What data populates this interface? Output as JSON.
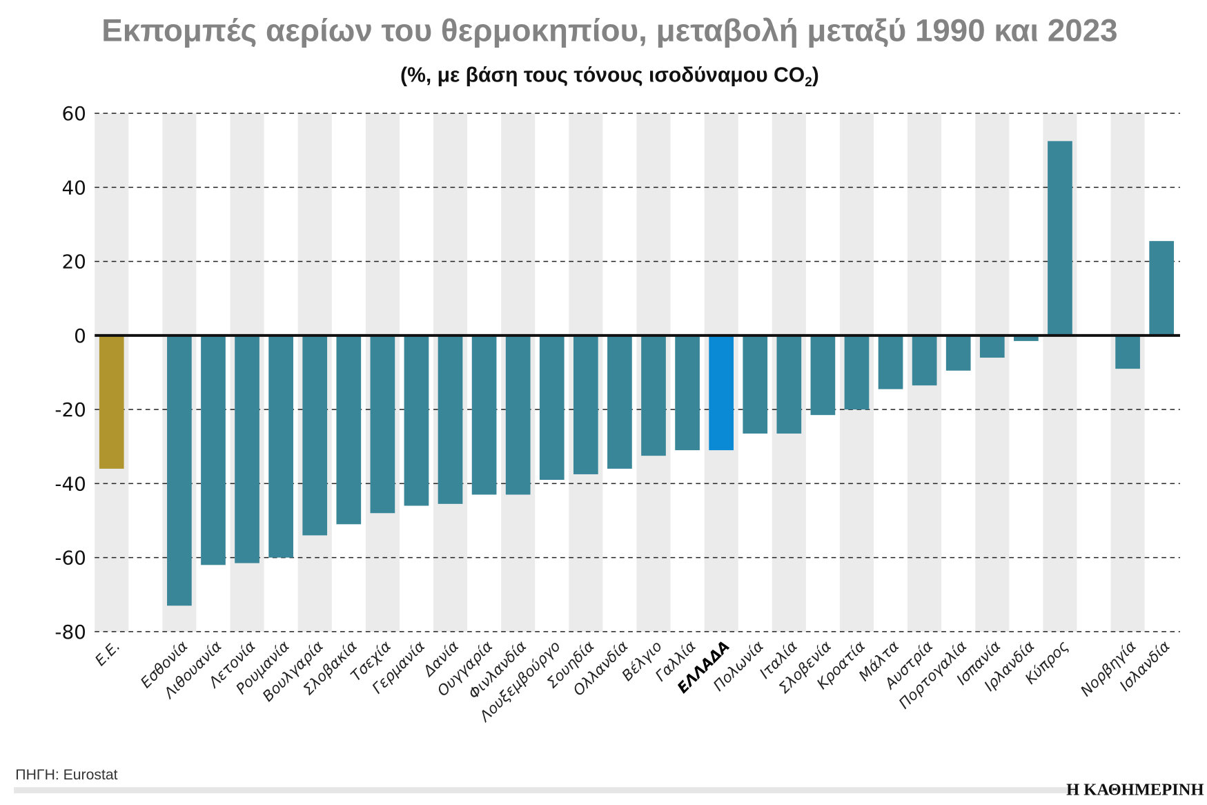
{
  "chart_data": {
    "type": "bar",
    "title": "Εκπομπές αερίων του θερμοκηπίου, μεταβολή μεταξύ 1990 και 2023",
    "subtitle": {
      "before": "(%, με βάση τους τόνους ισοδύναμου CO",
      "sub": "2",
      "after": ")"
    },
    "xlabel": "",
    "ylabel": "",
    "ylim": [
      -80,
      60
    ],
    "yticks": [
      60,
      40,
      20,
      0,
      -20,
      -40,
      -60,
      -80
    ],
    "grid": "horizontal-dashed",
    "categories": [
      "Ε.Ε.",
      "",
      "Εσθονία",
      "Λιθουανία",
      "Λετονία",
      "Ρουμανία",
      "Βουλγαρία",
      "Σλοβακία",
      "Τσεχία",
      "Γερμανία",
      "Δανία",
      "Ουγγαρία",
      "Φινλανδία",
      "Λουξεμβούργο",
      "Σουηδία",
      "Ολλανδία",
      "Βέλγιο",
      "Γαλλία",
      "ΕΛΛΑΔΑ",
      "Πολωνία",
      "Ιταλία",
      "Σλοβενία",
      "Κροατία",
      "Μάλτα",
      "Αυστρία",
      "Πορτογαλία",
      "Ισπανία",
      "Ιρλανδία",
      "Κύπρος",
      "",
      "Νορβηγία",
      "Ισλανδία"
    ],
    "values": [
      -36,
      null,
      -73,
      -62,
      -61.5,
      -60,
      -54,
      -51,
      -48,
      -46,
      -45.5,
      -43,
      -43,
      -39,
      -37.5,
      -36,
      -32.5,
      -31,
      -31,
      -26.5,
      -26.5,
      -21.5,
      -20,
      -14.5,
      -13.5,
      -9.5,
      -6,
      -1.5,
      52.5,
      null,
      -9,
      25.5
    ],
    "highlight": {
      "Ε.Ε.": "#b0952f",
      "ΕΛΛΑΔΑ": "#0a8ad4"
    },
    "colors": {
      "bar": "#3a8699",
      "stripe": "#ebebeb",
      "zero_line": "#111111"
    }
  },
  "footer": {
    "source": "ΠΗΓΗ: Eurostat",
    "logo": "Η ΚΑΘΗΜΕΡΙΝΗ"
  }
}
